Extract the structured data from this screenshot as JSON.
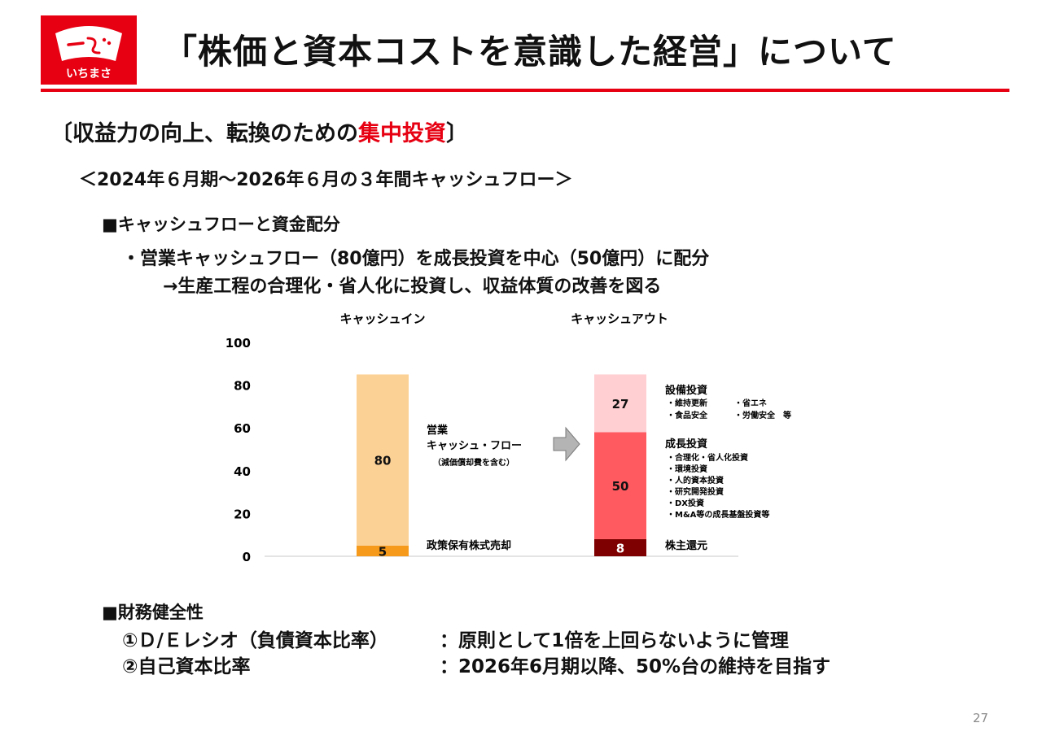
{
  "header": {
    "logo_text": "いちまさ",
    "title": "「株価と資本コストを意識した経営」について"
  },
  "section_heading": {
    "prefix": "〔収益力の向上、転換のための",
    "highlight": "集中投資",
    "suffix": "〕"
  },
  "period_heading": "＜2024年６月期～2026年６月の３年間キャッシュフロー＞",
  "cashflow_section": {
    "heading": "■キャッシュフローと資金配分",
    "line1": "・営業キャッシュフロー（80億円）を成長投資を中心（50億円）に配分",
    "line2": "→生産工程の合理化・省人化に投資し、収益体質の改善を図る"
  },
  "chart_data": {
    "type": "bar",
    "stacked": true,
    "categories": [
      "キャッシュイン",
      "キャッシュアウト"
    ],
    "ylim": [
      0,
      100
    ],
    "yticks": [
      0,
      20,
      40,
      60,
      80,
      100
    ],
    "series": [
      {
        "name": "政策保有株式売却",
        "category": "キャッシュイン",
        "value": 5,
        "color": "#f59a1b"
      },
      {
        "name": "営業キャッシュ・フロー",
        "category": "キャッシュイン",
        "value": 80,
        "color": "#fcd196"
      },
      {
        "name": "株主還元",
        "category": "キャッシュアウト",
        "value": 8,
        "color": "#7f0000"
      },
      {
        "name": "成長投資",
        "category": "キャッシュアウト",
        "value": 50,
        "color": "#ff5a5f"
      },
      {
        "name": "設備投資",
        "category": "キャッシュアウト",
        "value": 27,
        "color": "#ffcfd2"
      }
    ],
    "annotations": {
      "operating_cf_label1": "営業",
      "operating_cf_label2": "キャッシュ・フロー",
      "operating_cf_note": "（減価償却費を含む）",
      "stock_sale": "政策保有株式売却",
      "capex_title": "設備投資",
      "capex_item1": "・維持更新",
      "capex_item2": "・省エネ",
      "capex_item3": "・食品安全",
      "capex_item4": "・労働安全　等",
      "growth_title": "成長投資",
      "growth_items": [
        "・合理化・省人化投資",
        "・環境投資",
        "・人的資本投資",
        "・研究開発投資",
        "・DX投資",
        "・M&A等の成長基盤投資等"
      ],
      "return_title": "株主還元"
    }
  },
  "financial_section": {
    "heading": "■財務健全性",
    "item1_label": "①Ｄ/Ｅレシオ（負債資本比率）",
    "item1_value": "：原則として1倍を上回らないように管理",
    "item2_label": "②自己資本比率",
    "item2_value": "：2026年6月期以降、50%台の維持を目指す"
  },
  "page_number": "27"
}
